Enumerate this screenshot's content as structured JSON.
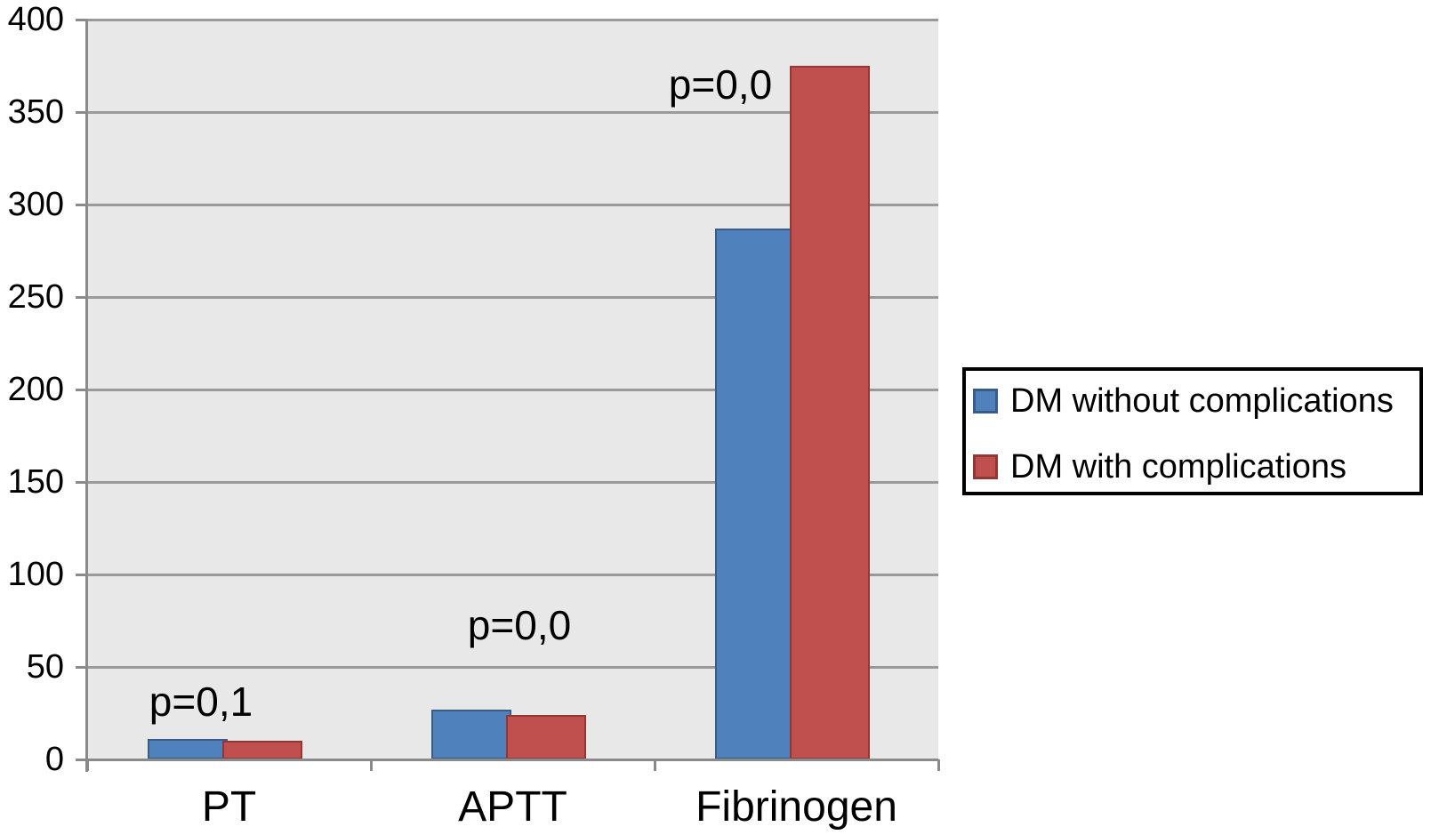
{
  "chart_data": {
    "type": "bar",
    "categories": [
      "PT",
      "APTT",
      "Fibrinogen"
    ],
    "series": [
      {
        "name": "DM without complications",
        "color": "#4F81BD",
        "border_color": "#385D8A",
        "values": [
          11,
          27,
          287
        ]
      },
      {
        "name": "DM with complications",
        "color": "#C0504D",
        "border_color": "#943634",
        "values": [
          10,
          24,
          375
        ]
      }
    ],
    "annotations": [
      {
        "text": "p=0,1",
        "category": "PT"
      },
      {
        "text": "p=0,0",
        "category": "APTT"
      },
      {
        "text": "p=0,0",
        "category": "Fibrinogen"
      }
    ],
    "yaxis": {
      "min": 0,
      "max": 400,
      "step": 50,
      "ticks": [
        "0",
        "50",
        "100",
        "150",
        "200",
        "250",
        "300",
        "350",
        "400"
      ]
    },
    "xlabel": "",
    "ylabel": "",
    "title": "",
    "grid": true,
    "legend_position": "right",
    "plot_background": "#E8E8E8",
    "gridline_color": "#9A9A9A",
    "axis_color": "#8A8A8A",
    "text_color": "#000000",
    "legend_border_color": "#000000"
  }
}
